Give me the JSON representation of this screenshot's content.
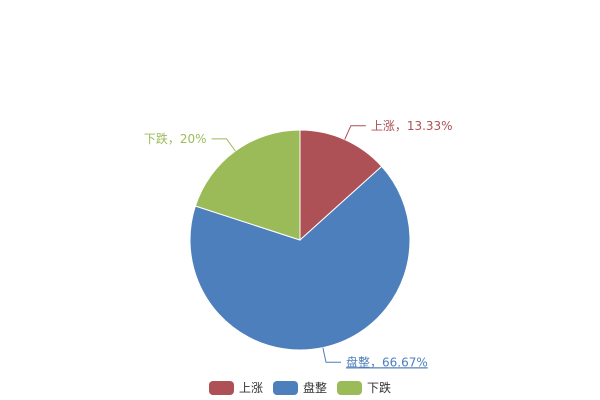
{
  "chart_data": {
    "type": "pie",
    "start": "top",
    "direction": "clockwise",
    "slices": [
      {
        "name": "上涨",
        "value": 13.33,
        "label": "上涨，13.33%",
        "color": "#ad5156"
      },
      {
        "name": "盘整",
        "value": 66.67,
        "label": "盘整，66.67%",
        "color": "#4d7fbc",
        "highlighted": true
      },
      {
        "name": "下跌",
        "value": 20,
        "label": "下跌，20%",
        "color": "#9bbb59"
      }
    ],
    "legend": {
      "position": "bottom",
      "entries": [
        "上涨",
        "盘整",
        "下跌"
      ]
    }
  }
}
